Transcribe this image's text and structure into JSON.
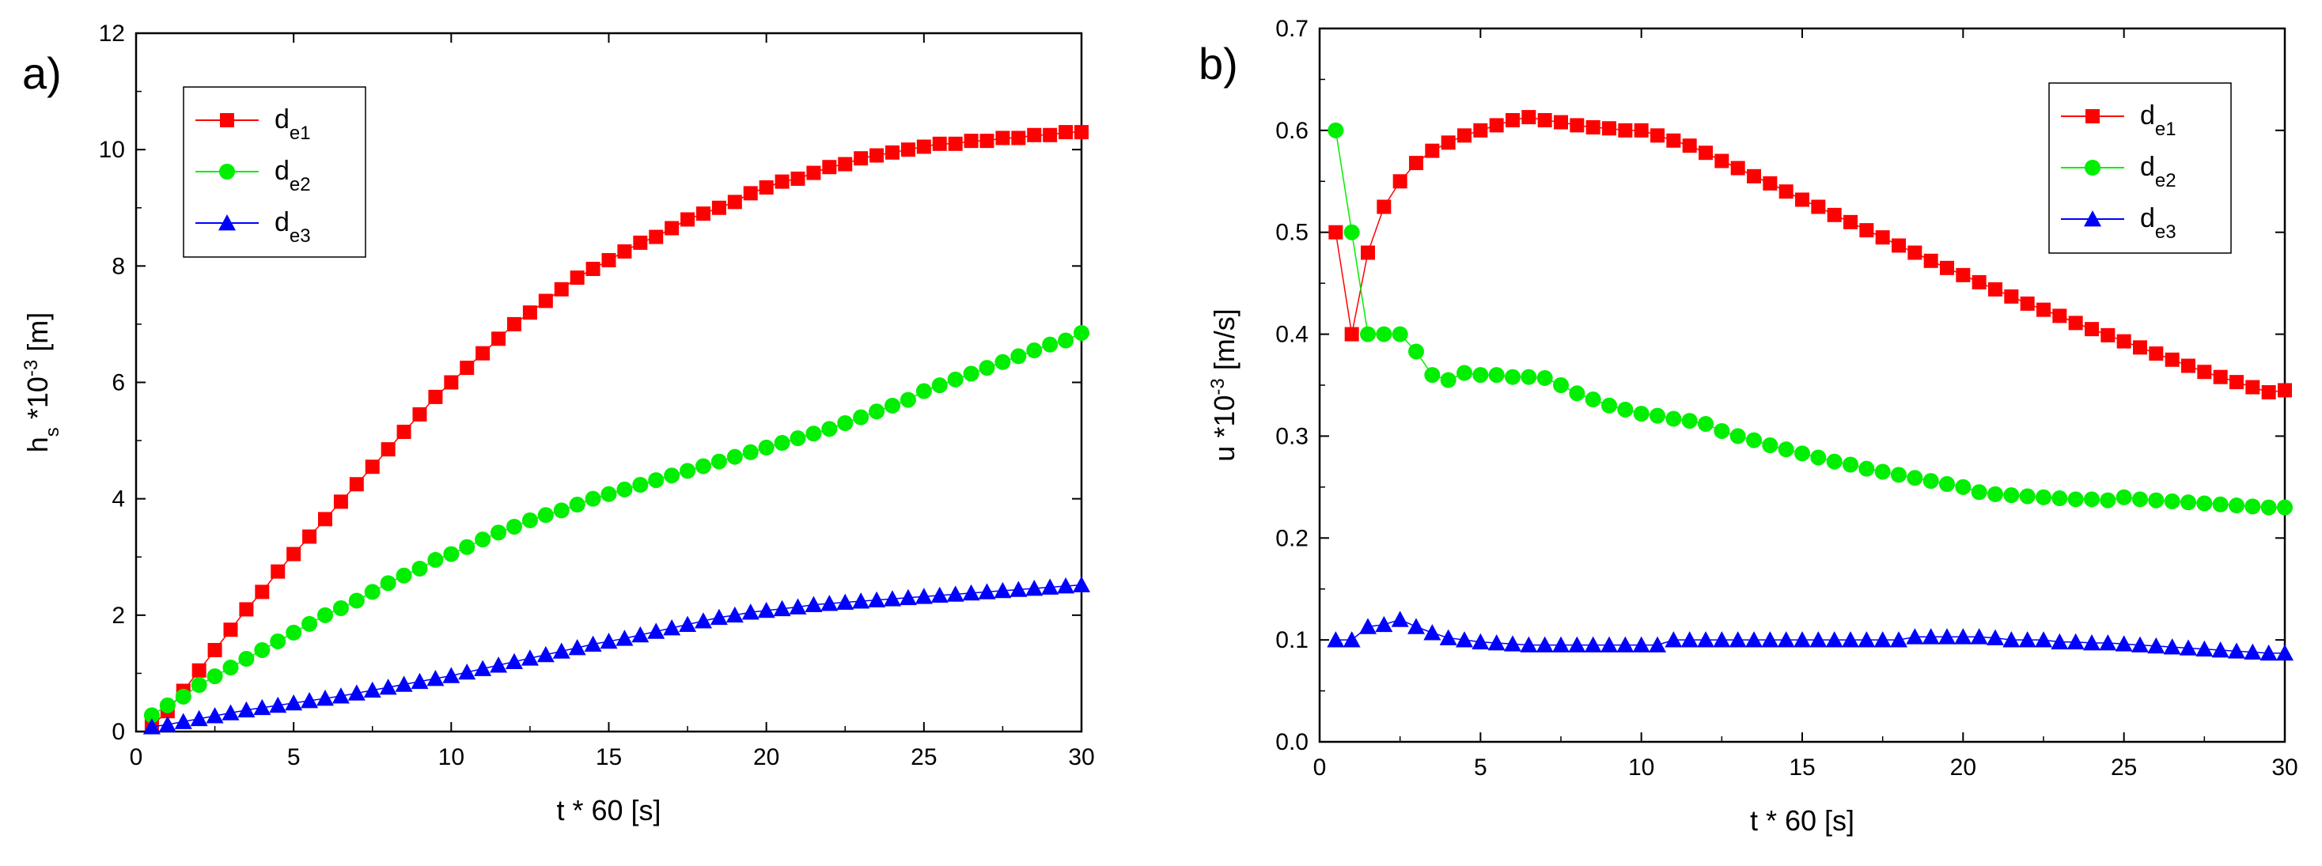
{
  "chart_data": [
    {
      "type": "line",
      "panel_label": "a)",
      "xlabel": "t * 60 [s]",
      "ylabel": {
        "base": "h",
        "sub": "s",
        "mid": " *10",
        "sup": "-3",
        "tail": " [m]"
      },
      "xlim": [
        0,
        30
      ],
      "ylim": [
        0,
        12
      ],
      "xticks": [
        0,
        5,
        10,
        15,
        20,
        25,
        30
      ],
      "yticks": [
        0,
        2,
        4,
        6,
        8,
        10,
        12
      ],
      "grid": false,
      "legend_position": "top-left",
      "x": [
        0.5,
        1,
        1.5,
        2,
        2.5,
        3,
        3.5,
        4,
        4.5,
        5,
        5.5,
        6,
        6.5,
        7,
        7.5,
        8,
        8.5,
        9,
        9.5,
        10,
        10.5,
        11,
        11.5,
        12,
        12.5,
        13,
        13.5,
        14,
        14.5,
        15,
        15.5,
        16,
        16.5,
        17,
        17.5,
        18,
        18.5,
        19,
        19.5,
        20,
        20.5,
        21,
        21.5,
        22,
        22.5,
        23,
        23.5,
        24,
        24.5,
        25,
        25.5,
        26,
        26.5,
        27,
        27.5,
        28,
        28.5,
        29,
        29.5,
        30
      ],
      "series": [
        {
          "name": "d",
          "name_sub": "e1",
          "color": "#ff0000",
          "marker": "square",
          "values": [
            0.1,
            0.35,
            0.7,
            1.05,
            1.4,
            1.75,
            2.1,
            2.4,
            2.75,
            3.05,
            3.35,
            3.65,
            3.95,
            4.25,
            4.55,
            4.85,
            5.15,
            5.45,
            5.75,
            6.0,
            6.25,
            6.5,
            6.75,
            7.0,
            7.2,
            7.4,
            7.6,
            7.8,
            7.95,
            8.1,
            8.25,
            8.4,
            8.5,
            8.65,
            8.8,
            8.9,
            9.0,
            9.1,
            9.25,
            9.35,
            9.45,
            9.5,
            9.6,
            9.7,
            9.75,
            9.85,
            9.9,
            9.95,
            10.0,
            10.05,
            10.1,
            10.1,
            10.15,
            10.15,
            10.2,
            10.2,
            10.25,
            10.25,
            10.3,
            10.3
          ]
        },
        {
          "name": "d",
          "name_sub": "e2",
          "color": "#00ee00",
          "marker": "circle",
          "values": [
            0.28,
            0.45,
            0.6,
            0.8,
            0.95,
            1.1,
            1.25,
            1.4,
            1.55,
            1.7,
            1.85,
            2.0,
            2.12,
            2.25,
            2.4,
            2.55,
            2.68,
            2.8,
            2.95,
            3.05,
            3.17,
            3.3,
            3.42,
            3.52,
            3.63,
            3.72,
            3.8,
            3.9,
            4.0,
            4.08,
            4.16,
            4.24,
            4.32,
            4.4,
            4.48,
            4.56,
            4.64,
            4.72,
            4.8,
            4.88,
            4.96,
            5.04,
            5.12,
            5.2,
            5.3,
            5.4,
            5.5,
            5.6,
            5.7,
            5.85,
            5.95,
            6.05,
            6.15,
            6.25,
            6.35,
            6.45,
            6.55,
            6.65,
            6.72,
            6.85
          ]
        },
        {
          "name": "d",
          "name_sub": "e3",
          "color": "#0000ff",
          "marker": "triangle",
          "values": [
            0.08,
            0.12,
            0.17,
            0.22,
            0.27,
            0.32,
            0.37,
            0.41,
            0.45,
            0.49,
            0.53,
            0.57,
            0.61,
            0.66,
            0.71,
            0.76,
            0.81,
            0.86,
            0.91,
            0.96,
            1.02,
            1.08,
            1.14,
            1.2,
            1.26,
            1.32,
            1.38,
            1.44,
            1.5,
            1.55,
            1.6,
            1.66,
            1.72,
            1.78,
            1.84,
            1.9,
            1.96,
            2.0,
            2.05,
            2.08,
            2.11,
            2.14,
            2.18,
            2.2,
            2.22,
            2.24,
            2.26,
            2.28,
            2.3,
            2.32,
            2.34,
            2.36,
            2.38,
            2.4,
            2.42,
            2.44,
            2.46,
            2.48,
            2.5,
            2.52
          ]
        }
      ]
    },
    {
      "type": "line",
      "panel_label": "b)",
      "xlabel": "t * 60 [s]",
      "ylabel": {
        "base": "u",
        "sub": "",
        "mid": " *10",
        "sup": "-3",
        "tail": " [m/s]"
      },
      "xlim": [
        0,
        30
      ],
      "ylim": [
        0,
        0.7
      ],
      "xticks": [
        0,
        5,
        10,
        15,
        20,
        25,
        30
      ],
      "yticks": [
        "0.0",
        "0.1",
        "0.2",
        "0.3",
        "0.4",
        "0.5",
        "0.6",
        "0.7"
      ],
      "grid": false,
      "legend_position": "top-right",
      "x": [
        0.5,
        1,
        1.5,
        2,
        2.5,
        3,
        3.5,
        4,
        4.5,
        5,
        5.5,
        6,
        6.5,
        7,
        7.5,
        8,
        8.5,
        9,
        9.5,
        10,
        10.5,
        11,
        11.5,
        12,
        12.5,
        13,
        13.5,
        14,
        14.5,
        15,
        15.5,
        16,
        16.5,
        17,
        17.5,
        18,
        18.5,
        19,
        19.5,
        20,
        20.5,
        21,
        21.5,
        22,
        22.5,
        23,
        23.5,
        24,
        24.5,
        25,
        25.5,
        26,
        26.5,
        27,
        27.5,
        28,
        28.5,
        29,
        29.5,
        30
      ],
      "series": [
        {
          "name": "d",
          "name_sub": "e1",
          "color": "#ff0000",
          "marker": "square",
          "values": [
            0.5,
            0.4,
            0.48,
            0.525,
            0.55,
            0.568,
            0.58,
            0.588,
            0.595,
            0.6,
            0.605,
            0.61,
            0.613,
            0.61,
            0.608,
            0.605,
            0.603,
            0.602,
            0.6,
            0.6,
            0.595,
            0.59,
            0.585,
            0.578,
            0.57,
            0.563,
            0.555,
            0.548,
            0.54,
            0.532,
            0.525,
            0.517,
            0.51,
            0.502,
            0.495,
            0.487,
            0.48,
            0.472,
            0.465,
            0.458,
            0.451,
            0.444,
            0.437,
            0.43,
            0.424,
            0.418,
            0.411,
            0.405,
            0.399,
            0.393,
            0.387,
            0.381,
            0.375,
            0.369,
            0.363,
            0.358,
            0.353,
            0.348,
            0.343,
            0.345
          ]
        },
        {
          "name": "d",
          "name_sub": "e2",
          "color": "#00ee00",
          "marker": "circle",
          "values": [
            0.6,
            0.5,
            0.4,
            0.4,
            0.4,
            0.383,
            0.36,
            0.355,
            0.362,
            0.36,
            0.36,
            0.358,
            0.358,
            0.357,
            0.35,
            0.342,
            0.336,
            0.33,
            0.326,
            0.322,
            0.32,
            0.317,
            0.315,
            0.312,
            0.305,
            0.3,
            0.296,
            0.291,
            0.287,
            0.283,
            0.279,
            0.275,
            0.272,
            0.268,
            0.265,
            0.262,
            0.259,
            0.256,
            0.253,
            0.25,
            0.245,
            0.243,
            0.242,
            0.241,
            0.24,
            0.239,
            0.238,
            0.238,
            0.237,
            0.24,
            0.238,
            0.237,
            0.236,
            0.235,
            0.234,
            0.233,
            0.232,
            0.231,
            0.23,
            0.23
          ]
        },
        {
          "name": "d",
          "name_sub": "e3",
          "color": "#0000ff",
          "marker": "triangle",
          "values": [
            0.1,
            0.1,
            0.113,
            0.115,
            0.12,
            0.113,
            0.107,
            0.102,
            0.1,
            0.098,
            0.097,
            0.096,
            0.095,
            0.095,
            0.095,
            0.095,
            0.095,
            0.095,
            0.095,
            0.095,
            0.095,
            0.1,
            0.1,
            0.1,
            0.1,
            0.1,
            0.1,
            0.1,
            0.1,
            0.1,
            0.1,
            0.1,
            0.1,
            0.1,
            0.1,
            0.1,
            0.103,
            0.103,
            0.103,
            0.103,
            0.103,
            0.102,
            0.1,
            0.1,
            0.1,
            0.098,
            0.098,
            0.097,
            0.097,
            0.096,
            0.095,
            0.094,
            0.093,
            0.092,
            0.091,
            0.09,
            0.089,
            0.088,
            0.087,
            0.087
          ]
        }
      ]
    }
  ]
}
